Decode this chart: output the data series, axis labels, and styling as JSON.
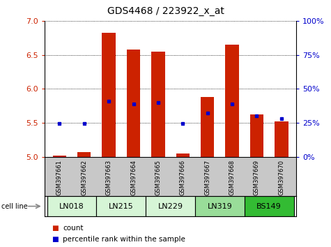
{
  "title": "GDS4468 / 223922_x_at",
  "samples": [
    "GSM397661",
    "GSM397662",
    "GSM397663",
    "GSM397664",
    "GSM397665",
    "GSM397666",
    "GSM397667",
    "GSM397668",
    "GSM397669",
    "GSM397670"
  ],
  "cell_lines": [
    "LN018",
    "LN215",
    "LN229",
    "LN319",
    "BS149"
  ],
  "cell_line_spans": [
    2,
    2,
    2,
    2,
    2
  ],
  "count_values": [
    5.02,
    5.07,
    6.83,
    6.58,
    6.55,
    5.05,
    5.88,
    6.65,
    5.62,
    5.52
  ],
  "percentile_values": [
    5.49,
    5.49,
    5.82,
    5.78,
    5.8,
    5.49,
    5.65,
    5.78,
    5.6,
    5.56
  ],
  "ymin": 5.0,
  "ymax": 7.0,
  "yticks_left": [
    5.0,
    5.5,
    6.0,
    6.5,
    7.0
  ],
  "yticks_right": [
    0,
    25,
    50,
    75,
    100
  ],
  "bar_color": "#cc2200",
  "dot_color": "#0000cc",
  "bg_sample_labels": "#c8c8c8",
  "cell_line_colors": [
    "#d6f5d6",
    "#d6f5d6",
    "#d6f5d6",
    "#99dd99",
    "#33bb33"
  ],
  "legend_count_label": "count",
  "legend_percentile_label": "percentile rank within the sample",
  "cell_line_label": "cell line"
}
